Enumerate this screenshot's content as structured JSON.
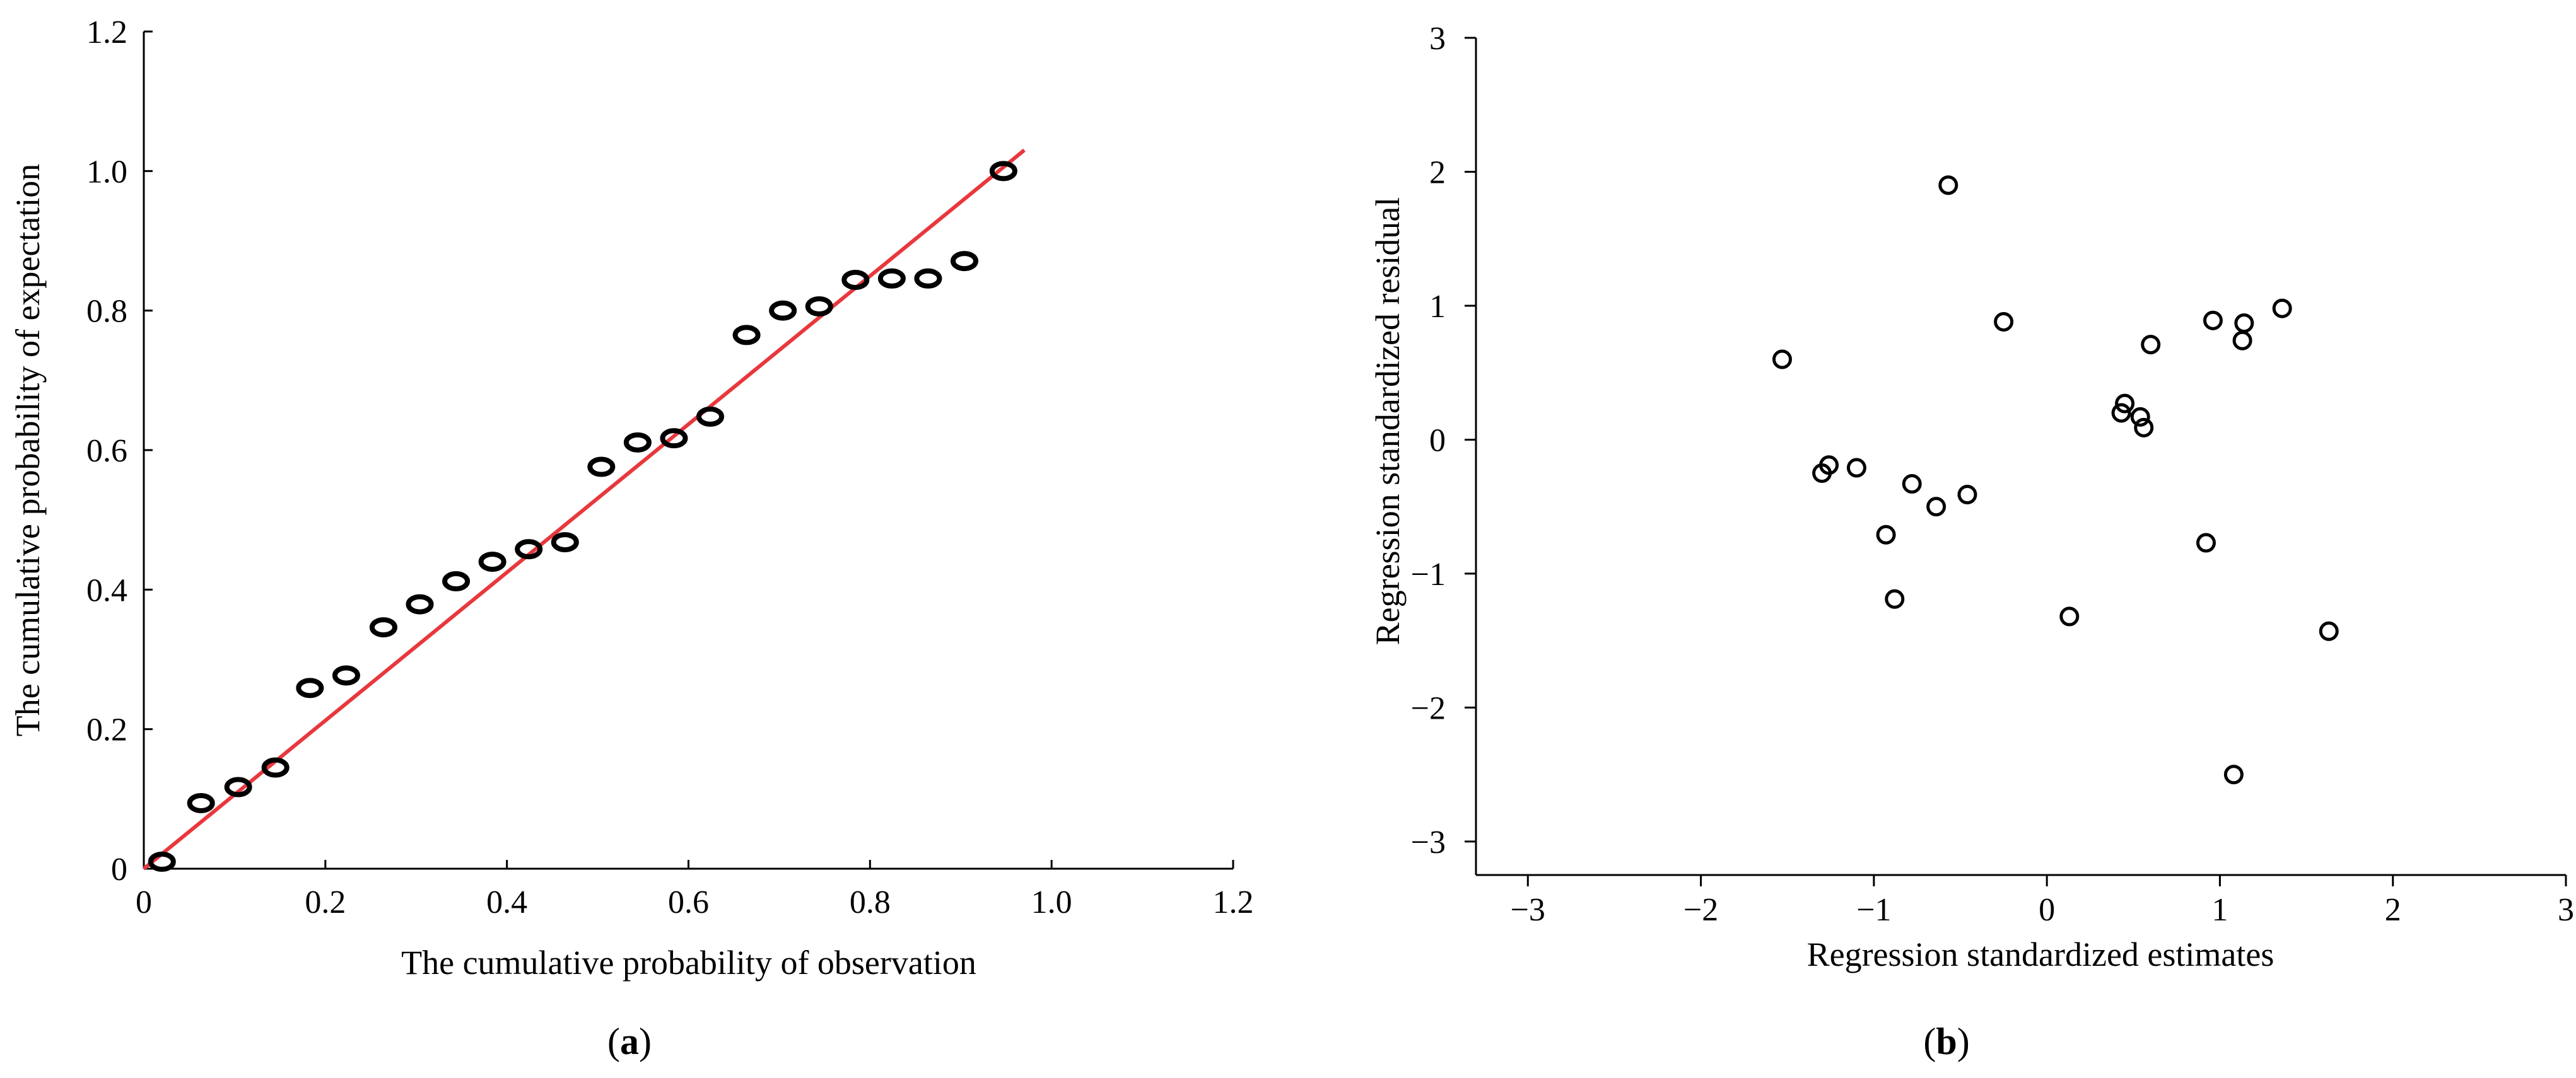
{
  "chart_data": [
    {
      "id": "a",
      "type": "scatter",
      "panel_label": "a",
      "xlabel": "The cumulative probability of observation",
      "ylabel": "The cumulative probability of expectation",
      "xlim": [
        0,
        1.2
      ],
      "ylim": [
        0,
        1.2
      ],
      "xticks": [
        0,
        0.2,
        0.4,
        0.6,
        0.8,
        1.0,
        1.2
      ],
      "xtick_labels": [
        "0",
        "0.2",
        "0.4",
        "0.6",
        "0.8",
        "1.0",
        "1.2"
      ],
      "yticks": [
        0,
        0.2,
        0.4,
        0.6,
        0.8,
        1.0,
        1.2
      ],
      "ytick_labels": [
        "0",
        "0.2",
        "0.4",
        "0.6",
        "0.8",
        "1.0",
        "1.2"
      ],
      "grid": false,
      "reference_line": {
        "x": [
          0,
          0.97
        ],
        "y": [
          0,
          1.03
        ],
        "color": "#e8383d"
      },
      "points": [
        {
          "x": 0.02,
          "y": 0.01
        },
        {
          "x": 0.063,
          "y": 0.094
        },
        {
          "x": 0.104,
          "y": 0.117
        },
        {
          "x": 0.145,
          "y": 0.145
        },
        {
          "x": 0.183,
          "y": 0.259
        },
        {
          "x": 0.223,
          "y": 0.277
        },
        {
          "x": 0.264,
          "y": 0.346
        },
        {
          "x": 0.304,
          "y": 0.379
        },
        {
          "x": 0.344,
          "y": 0.412
        },
        {
          "x": 0.384,
          "y": 0.44
        },
        {
          "x": 0.424,
          "y": 0.458
        },
        {
          "x": 0.464,
          "y": 0.468
        },
        {
          "x": 0.504,
          "y": 0.576
        },
        {
          "x": 0.544,
          "y": 0.611
        },
        {
          "x": 0.584,
          "y": 0.617
        },
        {
          "x": 0.624,
          "y": 0.648
        },
        {
          "x": 0.664,
          "y": 0.765
        },
        {
          "x": 0.704,
          "y": 0.8
        },
        {
          "x": 0.744,
          "y": 0.806
        },
        {
          "x": 0.784,
          "y": 0.844
        },
        {
          "x": 0.824,
          "y": 0.846
        },
        {
          "x": 0.864,
          "y": 0.846
        },
        {
          "x": 0.904,
          "y": 0.871
        },
        {
          "x": 0.947,
          "y": 1.0
        }
      ]
    },
    {
      "id": "b",
      "type": "scatter",
      "panel_label": "b",
      "xlabel": "Regression standardized estimates",
      "ylabel": "Regression standardized residual",
      "xlim": [
        -3.3,
        3.0
      ],
      "ylim": [
        -3.25,
        3.0
      ],
      "xticks": [
        -3,
        -2,
        -1,
        0,
        1,
        2,
        3
      ],
      "xtick_labels": [
        "−3",
        "−2",
        "−1",
        "0",
        "1",
        "2",
        "3"
      ],
      "yticks": [
        -3,
        -2,
        -1,
        0,
        1,
        2,
        3
      ],
      "ytick_labels": [
        "−3",
        "−2",
        "−1",
        "0",
        "1",
        "2",
        "3"
      ],
      "grid": false,
      "points": [
        {
          "x": -1.53,
          "y": 0.6
        },
        {
          "x": -1.3,
          "y": -0.25
        },
        {
          "x": -1.26,
          "y": -0.19
        },
        {
          "x": -1.1,
          "y": -0.21
        },
        {
          "x": -0.93,
          "y": -0.71
        },
        {
          "x": -0.88,
          "y": -1.19
        },
        {
          "x": -0.78,
          "y": -0.33
        },
        {
          "x": -0.64,
          "y": -0.5
        },
        {
          "x": -0.57,
          "y": 1.9
        },
        {
          "x": -0.46,
          "y": -0.41
        },
        {
          "x": -0.25,
          "y": 0.88
        },
        {
          "x": 0.13,
          "y": -1.32
        },
        {
          "x": 0.43,
          "y": 0.2
        },
        {
          "x": 0.45,
          "y": 0.27
        },
        {
          "x": 0.54,
          "y": 0.17
        },
        {
          "x": 0.56,
          "y": 0.09
        },
        {
          "x": 0.6,
          "y": 0.71
        },
        {
          "x": 0.92,
          "y": -0.77
        },
        {
          "x": 0.96,
          "y": 0.89
        },
        {
          "x": 1.08,
          "y": -2.5
        },
        {
          "x": 1.13,
          "y": 0.74
        },
        {
          "x": 1.14,
          "y": 0.87
        },
        {
          "x": 1.36,
          "y": 0.98
        },
        {
          "x": 1.63,
          "y": -1.43
        }
      ]
    }
  ]
}
